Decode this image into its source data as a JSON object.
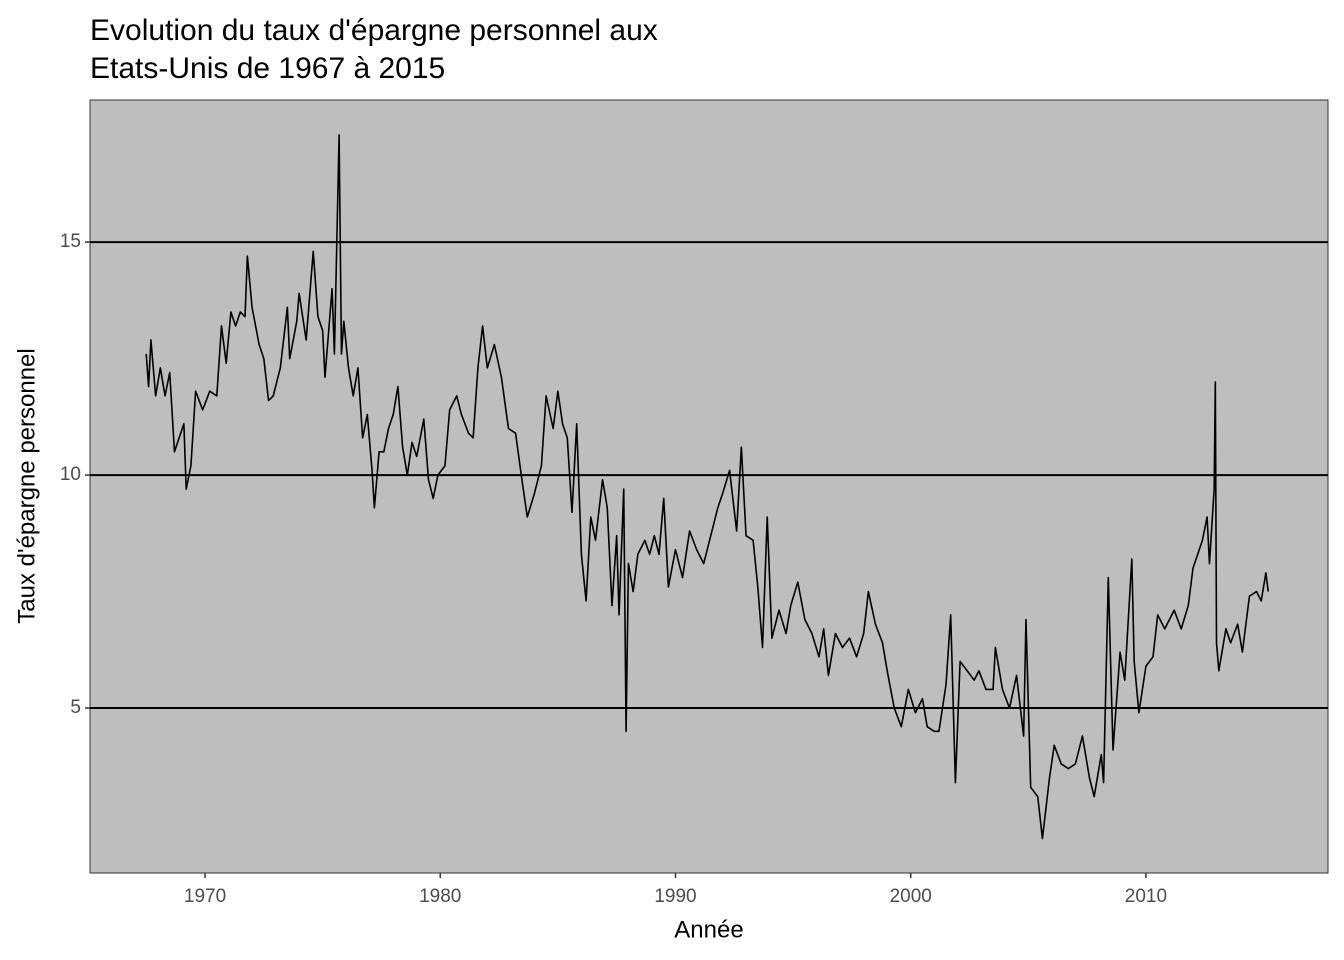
{
  "chart_data": {
    "type": "line",
    "title": [
      "Evolution du taux d'épargne personnel aux",
      "Etats-Unis de 1967 à 2015"
    ],
    "xlabel": "Année",
    "ylabel": "Taux d'épargne personnel",
    "color": "#000000",
    "background": "#bebebe",
    "grid": true,
    "xlim": [
      1965.11,
      2017.74
    ],
    "ylim": [
      1.46,
      18.05
    ],
    "xticks": [
      1970,
      1980,
      1990,
      2000,
      2010
    ],
    "yticks": [
      5,
      10,
      15
    ],
    "x": [
      1967.5,
      1967.6,
      1967.7,
      1967.9,
      1968.1,
      1968.3,
      1968.5,
      1968.7,
      1968.9,
      1969.1,
      1969.2,
      1969.4,
      1969.6,
      1969.9,
      1970.2,
      1970.5,
      1970.7,
      1970.9,
      1971.1,
      1971.3,
      1971.5,
      1971.7,
      1971.8,
      1972.0,
      1972.3,
      1972.5,
      1972.7,
      1972.9,
      1973.2,
      1973.5,
      1973.6,
      1973.9,
      1974.0,
      1974.3,
      1974.6,
      1974.8,
      1975.0,
      1975.1,
      1975.4,
      1975.5,
      1975.7,
      1975.8,
      1975.9,
      1976.1,
      1976.3,
      1976.5,
      1976.7,
      1976.9,
      1977.1,
      1977.2,
      1977.4,
      1977.6,
      1977.8,
      1978.0,
      1978.2,
      1978.4,
      1978.6,
      1978.8,
      1979.0,
      1979.3,
      1979.5,
      1979.7,
      1979.9,
      1980.2,
      1980.4,
      1980.7,
      1980.9,
      1981.2,
      1981.4,
      1981.6,
      1981.8,
      1982.0,
      1982.3,
      1982.6,
      1982.9,
      1983.2,
      1983.5,
      1983.7,
      1984.0,
      1984.3,
      1984.5,
      1984.8,
      1985.0,
      1985.2,
      1985.4,
      1985.6,
      1985.8,
      1986.0,
      1986.2,
      1986.4,
      1986.6,
      1986.9,
      1987.1,
      1987.3,
      1987.5,
      1987.6,
      1987.8,
      1987.9,
      1988.0,
      1988.2,
      1988.4,
      1988.7,
      1988.9,
      1989.1,
      1989.3,
      1989.5,
      1989.7,
      1990.0,
      1990.3,
      1990.6,
      1990.9,
      1991.2,
      1991.5,
      1991.8,
      1992.0,
      1992.3,
      1992.6,
      1992.8,
      1993.0,
      1993.3,
      1993.5,
      1993.7,
      1993.9,
      1994.1,
      1994.4,
      1994.7,
      1994.9,
      1995.2,
      1995.5,
      1995.8,
      1996.1,
      1996.3,
      1996.5,
      1996.8,
      1997.1,
      1997.4,
      1997.7,
      1998.0,
      1998.2,
      1998.5,
      1998.8,
      1999.0,
      1999.3,
      1999.6,
      1999.9,
      2000.2,
      2000.5,
      2000.7,
      2001.0,
      2001.2,
      2001.5,
      2001.7,
      2001.9,
      2002.1,
      2002.4,
      2002.7,
      2002.9,
      2003.2,
      2003.5,
      2003.6,
      2003.9,
      2004.2,
      2004.5,
      2004.8,
      2004.9,
      2005.1,
      2005.4,
      2005.6,
      2005.9,
      2006.1,
      2006.4,
      2006.7,
      2007.0,
      2007.3,
      2007.6,
      2007.8,
      2008.1,
      2008.2,
      2008.4,
      2008.6,
      2008.9,
      2009.1,
      2009.4,
      2009.5,
      2009.7,
      2010.0,
      2010.3,
      2010.5,
      2010.8,
      2011.2,
      2011.5,
      2011.8,
      2012.0,
      2012.4,
      2012.6,
      2012.7,
      2012.9,
      2012.95,
      2013.0,
      2013.1,
      2013.4,
      2013.6,
      2013.9,
      2014.1,
      2014.4,
      2014.7,
      2014.9,
      2015.1,
      2015.2
    ],
    "values": [
      12.6,
      11.9,
      12.9,
      11.7,
      12.3,
      11.7,
      12.2,
      10.5,
      10.8,
      11.1,
      9.7,
      10.2,
      11.8,
      11.4,
      11.8,
      11.7,
      13.2,
      12.4,
      13.5,
      13.2,
      13.5,
      13.4,
      14.7,
      13.6,
      12.8,
      12.5,
      11.6,
      11.7,
      12.3,
      13.6,
      12.5,
      13.3,
      13.9,
      12.9,
      14.8,
      13.4,
      13.1,
      12.1,
      14.0,
      12.6,
      17.3,
      12.6,
      13.3,
      12.3,
      11.7,
      12.3,
      10.8,
      11.3,
      10.1,
      9.3,
      10.5,
      10.5,
      11.0,
      11.3,
      11.9,
      10.6,
      10.0,
      10.7,
      10.4,
      11.2,
      9.9,
      9.5,
      10.0,
      10.2,
      11.4,
      11.7,
      11.3,
      10.9,
      10.8,
      12.3,
      13.2,
      12.3,
      12.8,
      12.1,
      11.0,
      10.9,
      9.8,
      9.1,
      9.6,
      10.2,
      11.7,
      11.0,
      11.8,
      11.1,
      10.8,
      9.2,
      11.1,
      8.3,
      7.3,
      9.1,
      8.6,
      9.9,
      9.3,
      7.2,
      8.7,
      7.0,
      9.7,
      4.5,
      8.1,
      7.5,
      8.3,
      8.6,
      8.3,
      8.7,
      8.3,
      9.5,
      7.6,
      8.4,
      7.8,
      8.8,
      8.4,
      8.1,
      8.7,
      9.3,
      9.6,
      10.1,
      8.8,
      10.6,
      8.7,
      8.6,
      7.6,
      6.3,
      9.1,
      6.5,
      7.1,
      6.6,
      7.2,
      7.7,
      6.9,
      6.6,
      6.1,
      6.7,
      5.7,
      6.6,
      6.3,
      6.5,
      6.1,
      6.6,
      7.5,
      6.8,
      6.4,
      5.8,
      5.0,
      4.6,
      5.4,
      4.9,
      5.2,
      4.6,
      4.5,
      4.5,
      5.5,
      7.0,
      3.4,
      6.0,
      5.8,
      5.6,
      5.8,
      5.4,
      5.4,
      6.3,
      5.4,
      5.0,
      5.7,
      4.4,
      6.9,
      3.3,
      3.1,
      2.2,
      3.5,
      4.2,
      3.8,
      3.7,
      3.8,
      4.4,
      3.5,
      3.1,
      4.0,
      3.4,
      7.8,
      4.1,
      6.2,
      5.6,
      8.2,
      6.0,
      4.9,
      5.9,
      6.1,
      7.0,
      6.7,
      7.1,
      6.7,
      7.2,
      8.0,
      8.6,
      9.1,
      8.1,
      9.7,
      12.0,
      6.4,
      5.8,
      6.7,
      6.4,
      6.8,
      6.2,
      7.4,
      7.5,
      7.3,
      7.9,
      7.5
    ]
  }
}
